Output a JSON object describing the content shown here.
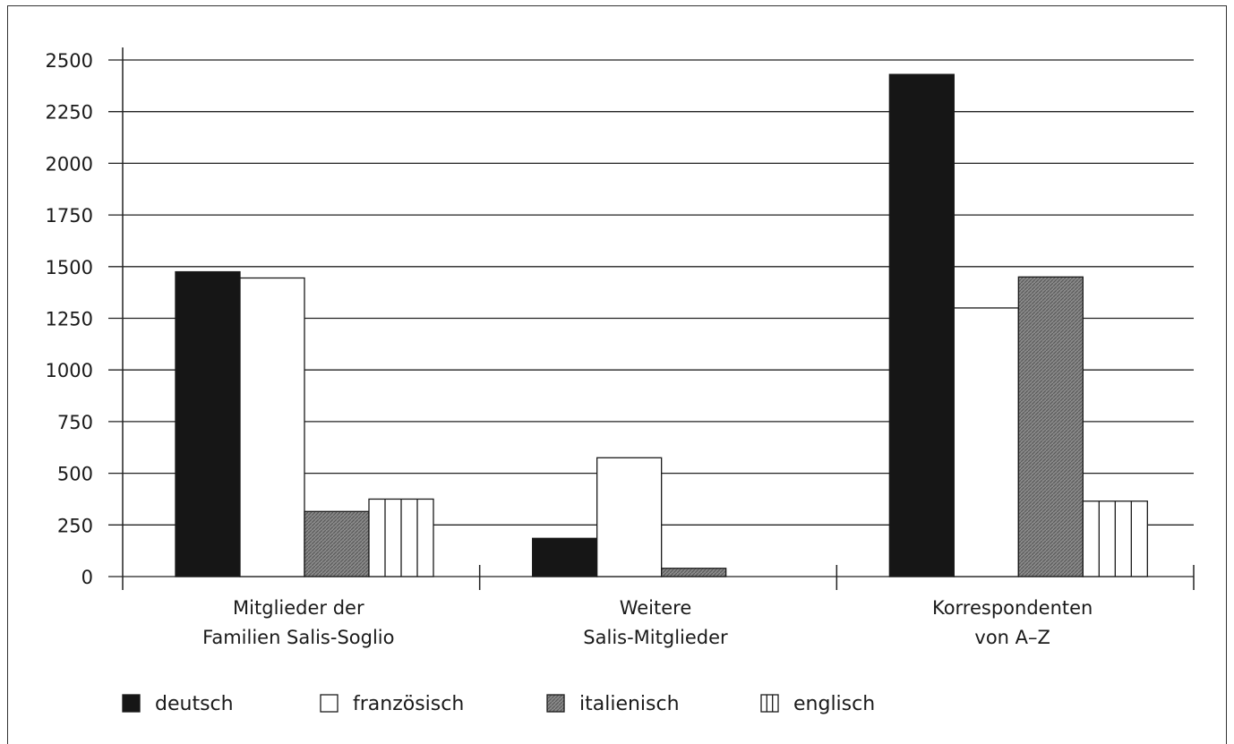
{
  "chart_data": {
    "type": "bar",
    "title": "",
    "xlabel": "",
    "ylabel": "",
    "ylim": [
      0,
      2500
    ],
    "yticks": [
      "0",
      "250",
      "500",
      "750",
      "1000",
      "1250",
      "1500",
      "1750",
      "2000",
      "2250",
      "2500"
    ],
    "grid": true,
    "legend_position": "bottom",
    "categories": [
      [
        "Mitglieder der",
        "Familien Salis-Soglio"
      ],
      [
        "Weitere",
        "Salis-Mitglieder"
      ],
      [
        "Korrespondenten",
        "von A–Z"
      ]
    ],
    "series": [
      {
        "name": "deutsch",
        "pattern": "solid-black",
        "values": [
          1475,
          185,
          2430
        ]
      },
      {
        "name": "französisch",
        "pattern": "white",
        "values": [
          1445,
          575,
          1300
        ]
      },
      {
        "name": "italienisch",
        "pattern": "gray-hatch",
        "values": [
          315,
          40,
          1450
        ]
      },
      {
        "name": "englisch",
        "pattern": "vertical-stripes",
        "values": [
          375,
          0,
          365
        ]
      }
    ]
  }
}
